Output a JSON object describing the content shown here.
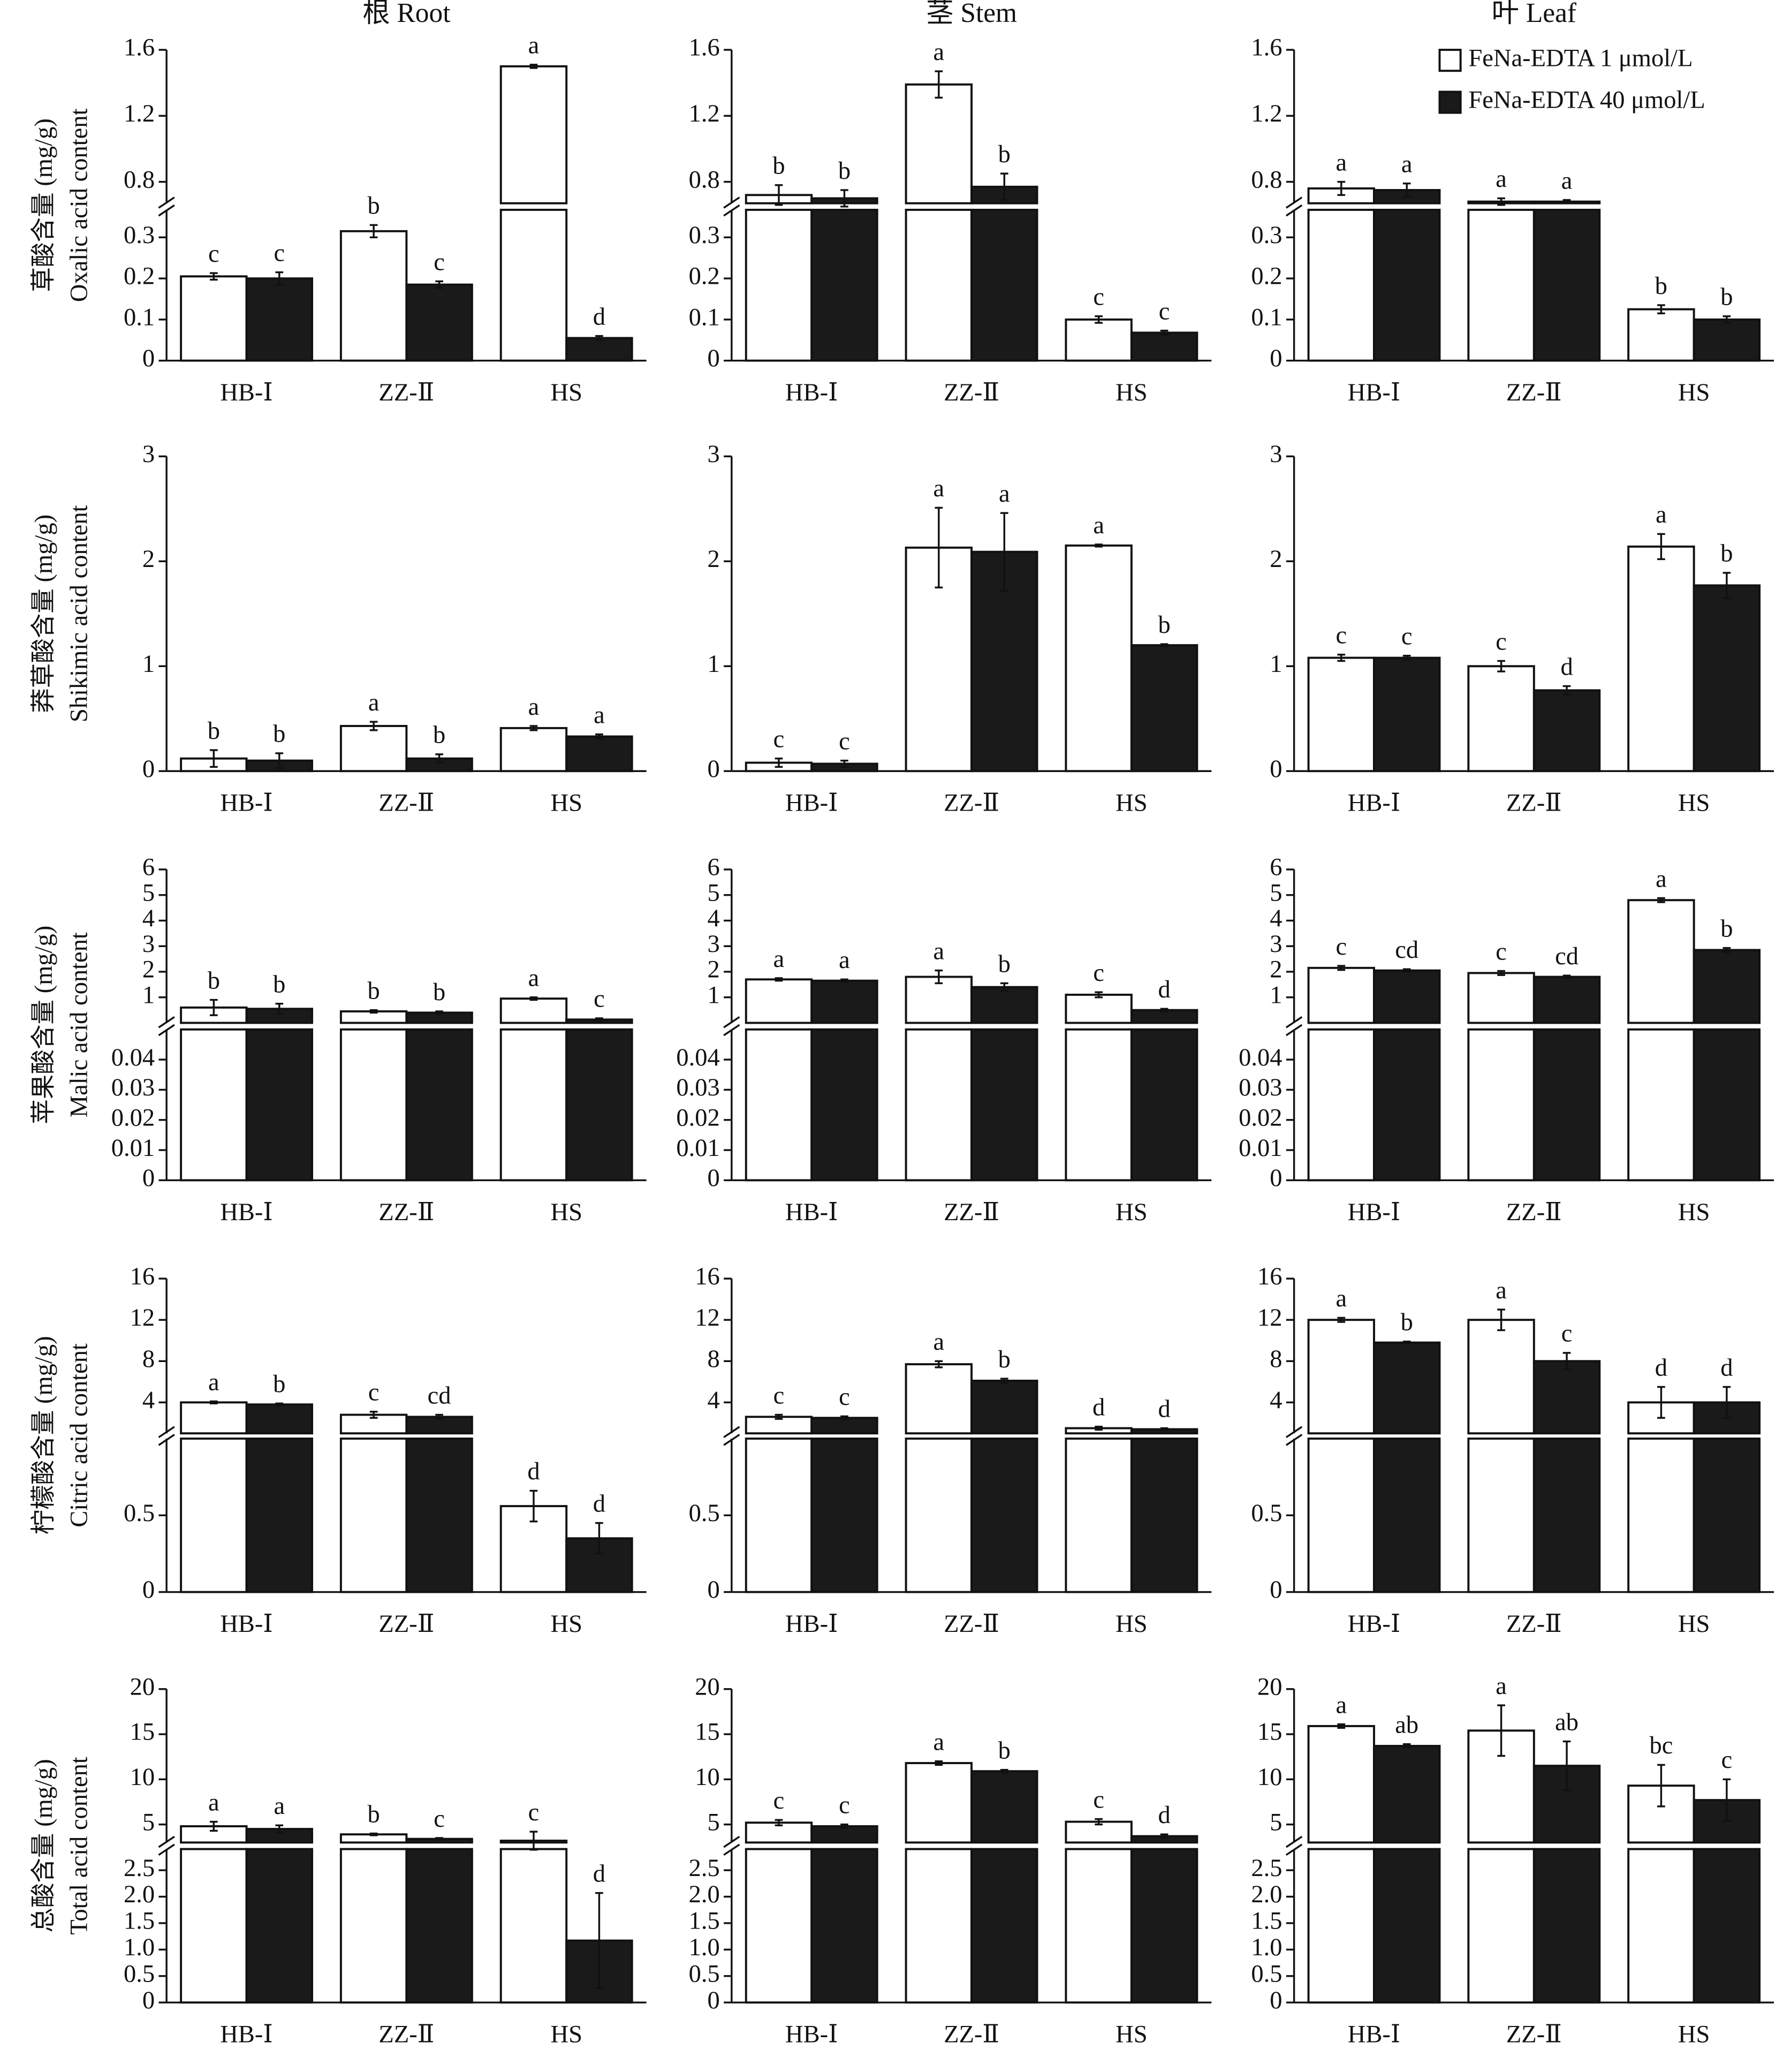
{
  "chart_data": [
    {
      "type": "bar",
      "title": "根 Root",
      "ylabel": [
        "草酸含量 (mg/g)",
        "Oxalic acid content"
      ],
      "categories": [
        "HB-Ⅰ",
        "ZZ-Ⅱ",
        "HS"
      ],
      "series": [
        {
          "color": "#ffffff",
          "values": [
            0.205,
            0.315,
            1.5
          ],
          "errors": [
            0.008,
            0.015,
            0.01
          ],
          "letters": [
            "c",
            "b",
            "a"
          ]
        },
        {
          "color": "#1a1a1a",
          "values": [
            0.2,
            0.185,
            0.055
          ],
          "errors": [
            0.015,
            0.008,
            0.005
          ],
          "letters": [
            "c",
            "c",
            "d"
          ]
        }
      ],
      "segments": [
        {
          "ylim": [
            0,
            0.367
          ],
          "yticks": [
            0,
            0.1,
            0.2,
            0.3
          ]
        },
        {
          "ylim": [
            0.67,
            1.6
          ],
          "yticks": [
            0.8,
            1.2,
            1.6
          ]
        }
      ]
    },
    {
      "type": "bar",
      "title": "茎 Stem",
      "categories": [
        "HB-Ⅰ",
        "ZZ-Ⅱ",
        "HS"
      ],
      "series": [
        {
          "color": "#ffffff",
          "values": [
            0.72,
            1.39,
            0.1
          ],
          "errors": [
            0.06,
            0.08,
            0.008
          ],
          "letters": [
            "b",
            "a",
            "c"
          ]
        },
        {
          "color": "#1a1a1a",
          "values": [
            0.7,
            0.77,
            0.068
          ],
          "errors": [
            0.05,
            0.08,
            0.005
          ],
          "letters": [
            "b",
            "b",
            "c"
          ]
        }
      ],
      "segments": [
        {
          "ylim": [
            0,
            0.367
          ],
          "yticks": [
            0,
            0.1,
            0.2,
            0.3
          ]
        },
        {
          "ylim": [
            0.67,
            1.6
          ],
          "yticks": [
            0.8,
            1.2,
            1.6
          ]
        }
      ]
    },
    {
      "type": "bar",
      "title": "叶 Leaf",
      "legend": "upper right",
      "categories": [
        "HB-Ⅰ",
        "ZZ-Ⅱ",
        "HS"
      ],
      "series": [
        {
          "name": "FeNa-EDTA 1 μmol/L",
          "color": "#ffffff",
          "values": [
            0.76,
            0.68,
            0.125
          ],
          "errors": [
            0.04,
            0.02,
            0.01
          ],
          "letters": [
            "a",
            "a",
            "b"
          ]
        },
        {
          "name": "FeNa-EDTA 40 μmol/L",
          "color": "#1a1a1a",
          "values": [
            0.75,
            0.68,
            0.1
          ],
          "errors": [
            0.04,
            0.01,
            0.008
          ],
          "letters": [
            "a",
            "a",
            "b"
          ]
        }
      ],
      "segments": [
        {
          "ylim": [
            0,
            0.367
          ],
          "yticks": [
            0,
            0.1,
            0.2,
            0.3
          ]
        },
        {
          "ylim": [
            0.67,
            1.6
          ],
          "yticks": [
            0.8,
            1.2,
            1.6
          ]
        }
      ]
    },
    {
      "type": "bar",
      "ylabel": [
        "莽草酸含量 (mg/g)",
        "Shikimic acid content"
      ],
      "categories": [
        "HB-Ⅰ",
        "ZZ-Ⅱ",
        "HS"
      ],
      "series": [
        {
          "color": "#ffffff",
          "values": [
            0.12,
            0.43,
            0.41
          ],
          "errors": [
            0.08,
            0.04,
            0.02
          ],
          "letters": [
            "b",
            "a",
            "a"
          ]
        },
        {
          "color": "#1a1a1a",
          "values": [
            0.1,
            0.12,
            0.33
          ],
          "errors": [
            0.07,
            0.04,
            0.02
          ],
          "letters": [
            "b",
            "b",
            "a"
          ]
        }
      ],
      "segments": [
        {
          "ylim": [
            0,
            3
          ],
          "yticks": [
            0,
            1,
            2,
            3
          ]
        }
      ]
    },
    {
      "type": "bar",
      "categories": [
        "HB-Ⅰ",
        "ZZ-Ⅱ",
        "HS"
      ],
      "series": [
        {
          "color": "#ffffff",
          "values": [
            0.08,
            2.13,
            2.15
          ],
          "errors": [
            0.04,
            0.38,
            0.01
          ],
          "letters": [
            "c",
            "a",
            "a"
          ]
        },
        {
          "color": "#1a1a1a",
          "values": [
            0.07,
            2.09,
            1.2
          ],
          "errors": [
            0.03,
            0.37,
            0.01
          ],
          "letters": [
            "c",
            "a",
            "b"
          ]
        }
      ],
      "segments": [
        {
          "ylim": [
            0,
            3
          ],
          "yticks": [
            0,
            1,
            2,
            3
          ]
        }
      ]
    },
    {
      "type": "bar",
      "categories": [
        "HB-Ⅰ",
        "ZZ-Ⅱ",
        "HS"
      ],
      "series": [
        {
          "color": "#ffffff",
          "values": [
            1.08,
            1.0,
            2.14
          ],
          "errors": [
            0.03,
            0.05,
            0.12
          ],
          "letters": [
            "c",
            "c",
            "a"
          ]
        },
        {
          "color": "#1a1a1a",
          "values": [
            1.08,
            0.77,
            1.77
          ],
          "errors": [
            0.02,
            0.04,
            0.12
          ],
          "letters": [
            "c",
            "d",
            "b"
          ]
        }
      ],
      "segments": [
        {
          "ylim": [
            0,
            3
          ],
          "yticks": [
            0,
            1,
            2,
            3
          ]
        }
      ]
    },
    {
      "type": "bar",
      "ylabel": [
        "苹果酸含量 (mg/g)",
        "Malic acid content"
      ],
      "categories": [
        "HB-Ⅰ",
        "ZZ-Ⅱ",
        "HS"
      ],
      "series": [
        {
          "color": "#ffffff",
          "values": [
            0.6,
            0.45,
            0.95
          ],
          "errors": [
            0.3,
            0.05,
            0.05
          ],
          "letters": [
            "b",
            "b",
            "a"
          ]
        },
        {
          "color": "#1a1a1a",
          "values": [
            0.55,
            0.4,
            0.13
          ],
          "errors": [
            0.2,
            0.05,
            0.05
          ],
          "letters": [
            "b",
            "b",
            "c"
          ]
        }
      ],
      "segments": [
        {
          "ylim": [
            0,
            0.05
          ],
          "yticks": [
            0,
            0.01,
            0.02,
            0.03,
            0.04
          ]
        },
        {
          "ylim": [
            0,
            6
          ],
          "yticks": [
            1,
            2,
            3,
            4,
            5,
            6
          ]
        }
      ]
    },
    {
      "type": "bar",
      "categories": [
        "HB-Ⅰ",
        "ZZ-Ⅱ",
        "HS"
      ],
      "series": [
        {
          "color": "#ffffff",
          "values": [
            1.7,
            1.8,
            1.1
          ],
          "errors": [
            0.05,
            0.25,
            0.1
          ],
          "letters": [
            "a",
            "a",
            "c"
          ]
        },
        {
          "color": "#1a1a1a",
          "values": [
            1.65,
            1.4,
            0.5
          ],
          "errors": [
            0.05,
            0.15,
            0.05
          ],
          "letters": [
            "a",
            "b",
            "d"
          ]
        }
      ],
      "segments": [
        {
          "ylim": [
            0,
            0.05
          ],
          "yticks": [
            0,
            0.01,
            0.02,
            0.03,
            0.04
          ]
        },
        {
          "ylim": [
            0,
            6
          ],
          "yticks": [
            1,
            2,
            3,
            4,
            5,
            6
          ]
        }
      ]
    },
    {
      "type": "bar",
      "categories": [
        "HB-Ⅰ",
        "ZZ-Ⅱ",
        "HS"
      ],
      "series": [
        {
          "color": "#ffffff",
          "values": [
            2.15,
            1.95,
            4.8
          ],
          "errors": [
            0.08,
            0.08,
            0.08
          ],
          "letters": [
            "c",
            "c",
            "a"
          ]
        },
        {
          "color": "#1a1a1a",
          "values": [
            2.05,
            1.8,
            2.85
          ],
          "errors": [
            0.05,
            0.05,
            0.08
          ],
          "letters": [
            "cd",
            "cd",
            "b"
          ]
        }
      ],
      "segments": [
        {
          "ylim": [
            0,
            0.05
          ],
          "yticks": [
            0,
            0.01,
            0.02,
            0.03,
            0.04
          ]
        },
        {
          "ylim": [
            0,
            6
          ],
          "yticks": [
            1,
            2,
            3,
            4,
            5,
            6
          ]
        }
      ]
    },
    {
      "type": "bar",
      "ylabel": [
        "柠檬酸含量 (mg/g)",
        "Citric acid content"
      ],
      "categories": [
        "HB-Ⅰ",
        "ZZ-Ⅱ",
        "HS"
      ],
      "series": [
        {
          "color": "#ffffff",
          "values": [
            4,
            2.8,
            0.56
          ],
          "errors": [
            0.1,
            0.3,
            0.1
          ],
          "letters": [
            "a",
            "c",
            "d"
          ]
        },
        {
          "color": "#1a1a1a",
          "values": [
            3.8,
            2.6,
            0.35
          ],
          "errors": [
            0.1,
            0.2,
            0.1
          ],
          "letters": [
            "b",
            "cd",
            "d"
          ]
        }
      ],
      "segments": [
        {
          "ylim": [
            0,
            1
          ],
          "yticks": [
            0,
            0.5
          ]
        },
        {
          "ylim": [
            1,
            16
          ],
          "yticks": [
            4,
            8,
            12,
            16
          ]
        }
      ]
    },
    {
      "type": "bar",
      "categories": [
        "HB-Ⅰ",
        "ZZ-Ⅱ",
        "HS"
      ],
      "series": [
        {
          "color": "#ffffff",
          "values": [
            2.6,
            7.7,
            1.5
          ],
          "errors": [
            0.2,
            0.3,
            0.15
          ],
          "letters": [
            "c",
            "a",
            "d"
          ]
        },
        {
          "color": "#1a1a1a",
          "values": [
            2.5,
            6.1,
            1.4
          ],
          "errors": [
            0.15,
            0.2,
            0.1
          ],
          "letters": [
            "c",
            "b",
            "d"
          ]
        }
      ],
      "segments": [
        {
          "ylim": [
            0,
            1
          ],
          "yticks": [
            0,
            0.5
          ]
        },
        {
          "ylim": [
            1,
            16
          ],
          "yticks": [
            4,
            8,
            12,
            16
          ]
        }
      ]
    },
    {
      "type": "bar",
      "categories": [
        "HB-Ⅰ",
        "ZZ-Ⅱ",
        "HS"
      ],
      "series": [
        {
          "color": "#ffffff",
          "values": [
            12,
            12,
            4
          ],
          "errors": [
            0.2,
            1,
            1.5
          ],
          "letters": [
            "a",
            "a",
            "d"
          ]
        },
        {
          "color": "#1a1a1a",
          "values": [
            9.8,
            8,
            4
          ],
          "errors": [
            0.1,
            0.8,
            1.5
          ],
          "letters": [
            "b",
            "c",
            "d"
          ]
        }
      ],
      "segments": [
        {
          "ylim": [
            0,
            1
          ],
          "yticks": [
            0,
            0.5
          ]
        },
        {
          "ylim": [
            1,
            16
          ],
          "yticks": [
            4,
            8,
            12,
            16
          ]
        }
      ]
    },
    {
      "type": "bar",
      "ylabel": [
        "总酸含量 (mg/g)",
        "Total acid content"
      ],
      "categories": [
        "HB-Ⅰ",
        "ZZ-Ⅱ",
        "HS"
      ],
      "series": [
        {
          "color": "#ffffff",
          "values": [
            4.8,
            3.9,
            3.2
          ],
          "errors": [
            0.5,
            0.1,
            1.0
          ],
          "letters": [
            "a",
            "b",
            "c"
          ]
        },
        {
          "color": "#1a1a1a",
          "values": [
            4.5,
            3.4,
            1.17
          ],
          "errors": [
            0.4,
            0.1,
            0.9
          ],
          "letters": [
            "a",
            "c",
            "d"
          ]
        }
      ],
      "segments": [
        {
          "ylim": [
            0,
            2.9
          ],
          "yticks": [
            0,
            0.5,
            {
              "value": 1,
              "label": "1.0"
            },
            1.5,
            {
              "value": 2,
              "label": "2.0"
            },
            2.5
          ]
        },
        {
          "ylim": [
            3,
            20
          ],
          "yticks": [
            5,
            10,
            15,
            20
          ]
        }
      ]
    },
    {
      "type": "bar",
      "categories": [
        "HB-Ⅰ",
        "ZZ-Ⅱ",
        "HS"
      ],
      "series": [
        {
          "color": "#ffffff",
          "values": [
            5.2,
            11.8,
            5.3
          ],
          "errors": [
            0.3,
            0.2,
            0.3
          ],
          "letters": [
            "c",
            "a",
            "c"
          ]
        },
        {
          "color": "#1a1a1a",
          "values": [
            4.8,
            10.9,
            3.7
          ],
          "errors": [
            0.2,
            0.15,
            0.2
          ],
          "letters": [
            "c",
            "b",
            "d"
          ]
        }
      ],
      "segments": [
        {
          "ylim": [
            0,
            2.9
          ],
          "yticks": [
            0,
            0.5,
            {
              "value": 1,
              "label": "1.0"
            },
            1.5,
            {
              "value": 2,
              "label": "2.0"
            },
            2.5
          ]
        },
        {
          "ylim": [
            3,
            20
          ],
          "yticks": [
            5,
            10,
            15,
            20
          ]
        }
      ]
    },
    {
      "type": "bar",
      "categories": [
        "HB-Ⅰ",
        "ZZ-Ⅱ",
        "HS"
      ],
      "series": [
        {
          "color": "#ffffff",
          "values": [
            15.9,
            15.4,
            9.3
          ],
          "errors": [
            0.2,
            2.8,
            2.3
          ],
          "letters": [
            "a",
            "a",
            "bc"
          ]
        },
        {
          "color": "#1a1a1a",
          "values": [
            13.7,
            11.5,
            7.7
          ],
          "errors": [
            0.2,
            2.7,
            2.3
          ],
          "letters": [
            "ab",
            "ab",
            "c"
          ]
        }
      ],
      "segments": [
        {
          "ylim": [
            0,
            2.9
          ],
          "yticks": [
            0,
            0.5,
            {
              "value": 1,
              "label": "1.0"
            },
            1.5,
            {
              "value": 2,
              "label": "2.0"
            },
            2.5
          ]
        },
        {
          "ylim": [
            3,
            20
          ],
          "yticks": [
            5,
            10,
            15,
            20
          ]
        }
      ]
    }
  ]
}
